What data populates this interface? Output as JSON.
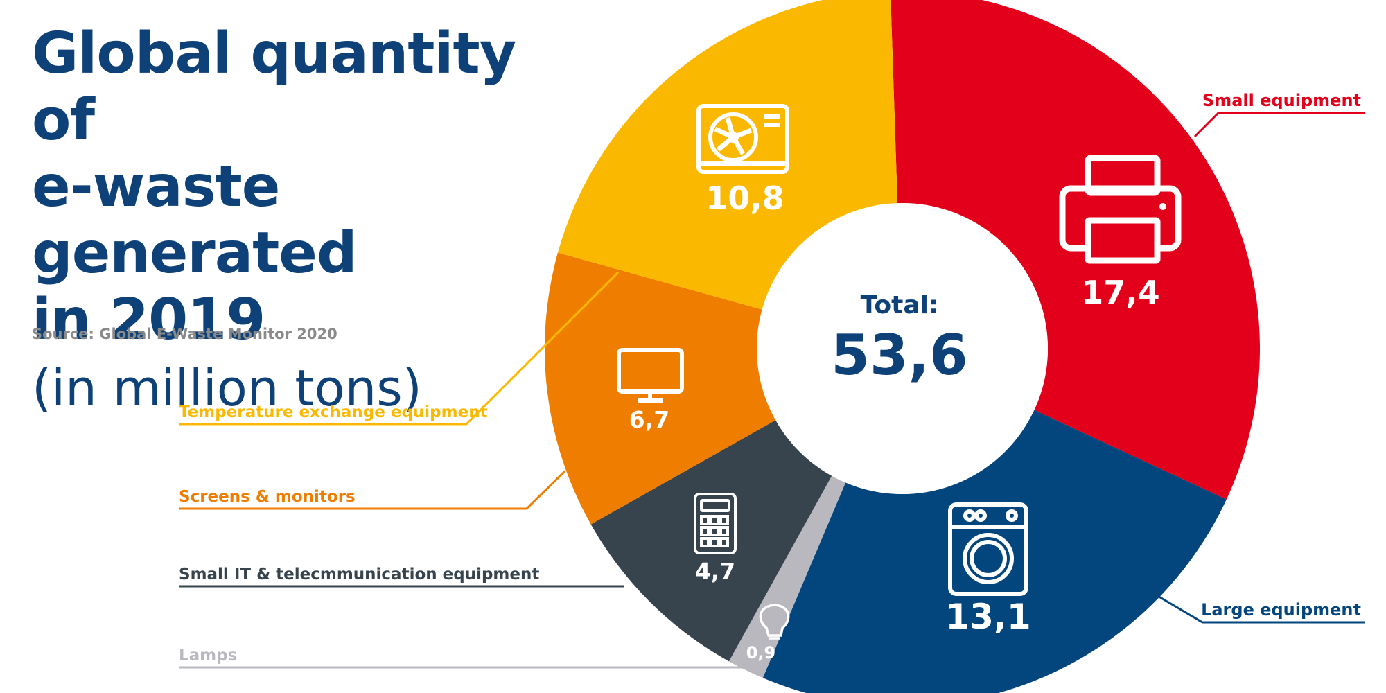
{
  "title": [
    "Global quantity of",
    "e-waste generated",
    "in 2019"
  ],
  "subtitle": "(in million tons)",
  "source": "Source: Global E-Waste Monitor 2020",
  "center": {
    "label": "Total:",
    "value": "53,6"
  },
  "colors": {
    "small_equipment": "#e2001a",
    "large_equipment": "#03467e",
    "lamps": "#b9b8bf",
    "small_it": "#37444e",
    "screens": "#ee7d00",
    "temperature": "#fbb800",
    "title": "#0d4177"
  },
  "chart_data": {
    "type": "pie",
    "donut": true,
    "title": "Global quantity of e-waste generated in 2019",
    "subtitle": "(in million tons)",
    "total": 53.6,
    "slices": [
      {
        "name": "Small equipment",
        "value": 17.4,
        "label": "17,4",
        "color": "#e2001a",
        "icon": "printer-icon"
      },
      {
        "name": "Large equipment",
        "value": 13.1,
        "label": "13,1",
        "color": "#03467e",
        "icon": "washing-machine-icon"
      },
      {
        "name": "Lamps",
        "value": 0.9,
        "label": "0,9",
        "color": "#b9b8bf",
        "icon": "light-bulb-icon"
      },
      {
        "name": "Small IT & telecmmunication equipment",
        "value": 4.7,
        "label": "4,7",
        "color": "#37444e",
        "icon": "calculator-icon"
      },
      {
        "name": "Screens & monitors",
        "value": 6.7,
        "label": "6,7",
        "color": "#ee7d00",
        "icon": "monitor-icon"
      },
      {
        "name": "Temperature exchange equipment",
        "value": 10.8,
        "label": "10,8",
        "color": "#fbb800",
        "icon": "air-conditioner-icon"
      }
    ]
  }
}
